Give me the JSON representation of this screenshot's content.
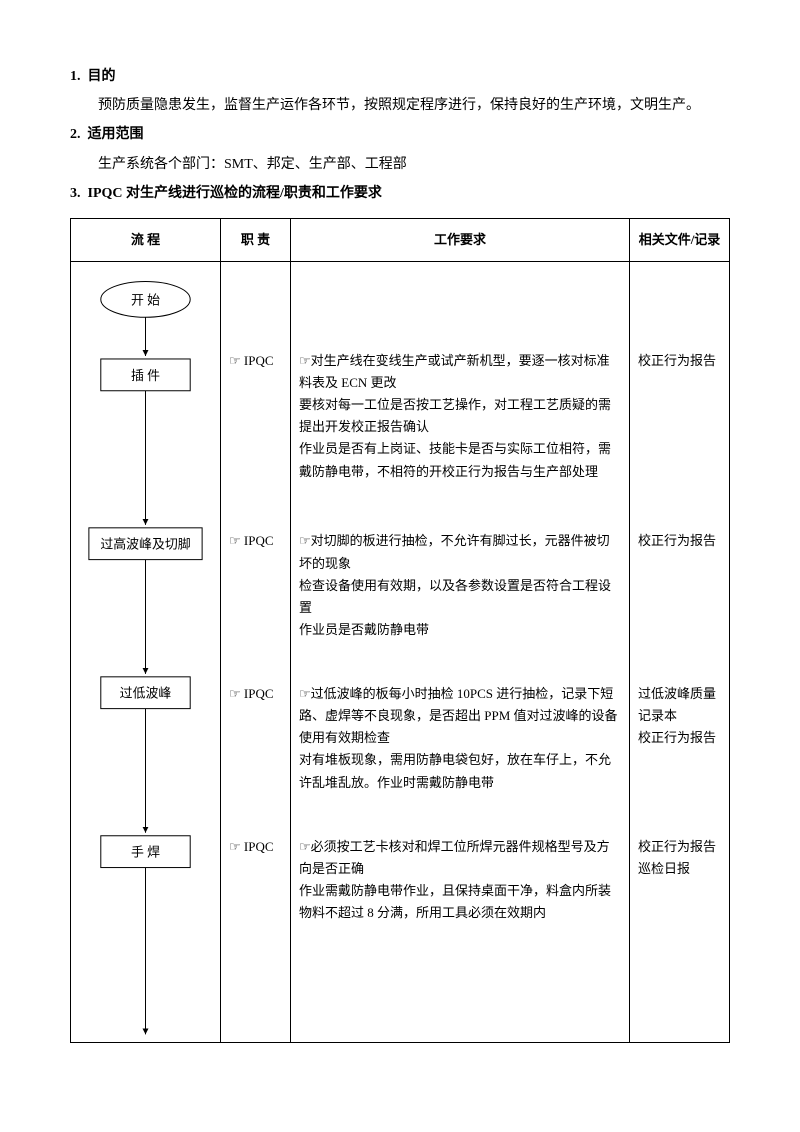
{
  "sections": {
    "s1": {
      "num": "1.",
      "title": "目的",
      "body": "预防质量隐患发生，监督生产运作各环节，按照规定程序进行，保持良好的生产环境，文明生产。"
    },
    "s2": {
      "num": "2.",
      "title": "适用范围",
      "body": "生产系统各个部门：SMT、邦定、生产部、工程部"
    },
    "s3": {
      "num": "3.",
      "title": "IPQC 对生产线进行巡检的流程/职责和工作要求"
    }
  },
  "table": {
    "headers": {
      "flow": "流  程",
      "duty": "职  责",
      "req": "工作要求",
      "doc": "相关文件/记录"
    },
    "flow_nodes": {
      "start": "开  始",
      "n1": "插 件",
      "n2": "过高波峰及切脚",
      "n3": "过低波峰",
      "n4": "手  焊"
    },
    "rows": [
      {
        "duty_icon": "☞",
        "duty": "IPQC",
        "req_icon": "☞",
        "req": "对生产线在变线生产或试产新机型，要逐一核对标准料表及 ECN 更改\n要核对每一工位是否按工艺操作，对工程工艺质疑的需提出开发校正报告确认\n作业员是否有上岗证、技能卡是否与实际工位相符，需戴防静电带，不相符的开校正行为报告与生产部处理",
        "doc": "校正行为报告"
      },
      {
        "duty_icon": "☞",
        "duty": "IPQC",
        "req_icon": "☞",
        "req": "对切脚的板进行抽检，不允许有脚过长，元器件被切坏的现象\n检查设备使用有效期，以及各参数设置是否符合工程设置\n作业员是否戴防静电带",
        "doc": "校正行为报告"
      },
      {
        "duty_icon": "☞",
        "duty": "IPQC",
        "req_icon": "☞",
        "req": "过低波峰的板每小时抽检 10PCS 进行抽检，记录下短路、虚焊等不良现象，是否超出 PPM 值对过波峰的设备使用有效期检查\n对有堆板现象，需用防静电袋包好，放在车仔上，不允许乱堆乱放。作业时需戴防静电带",
        "doc": "过低波峰质量记录本\n校正行为报告"
      },
      {
        "duty_icon": "☞",
        "duty": "IPQC",
        "req_icon": "☞",
        "req": "必须按工艺卡核对和焊工位所焊元器件规格型号及方向是否正确\n作业需戴防静电带作业，且保持桌面干净，料盒内所装物料不超过 8 分满，所用工具必须在效期内",
        "doc": "校正行为报告\n巡检日报"
      }
    ]
  },
  "style": {
    "border_color": "#000000",
    "bg": "#ffffff",
    "font_size_body": 14,
    "font_size_table": 13
  }
}
